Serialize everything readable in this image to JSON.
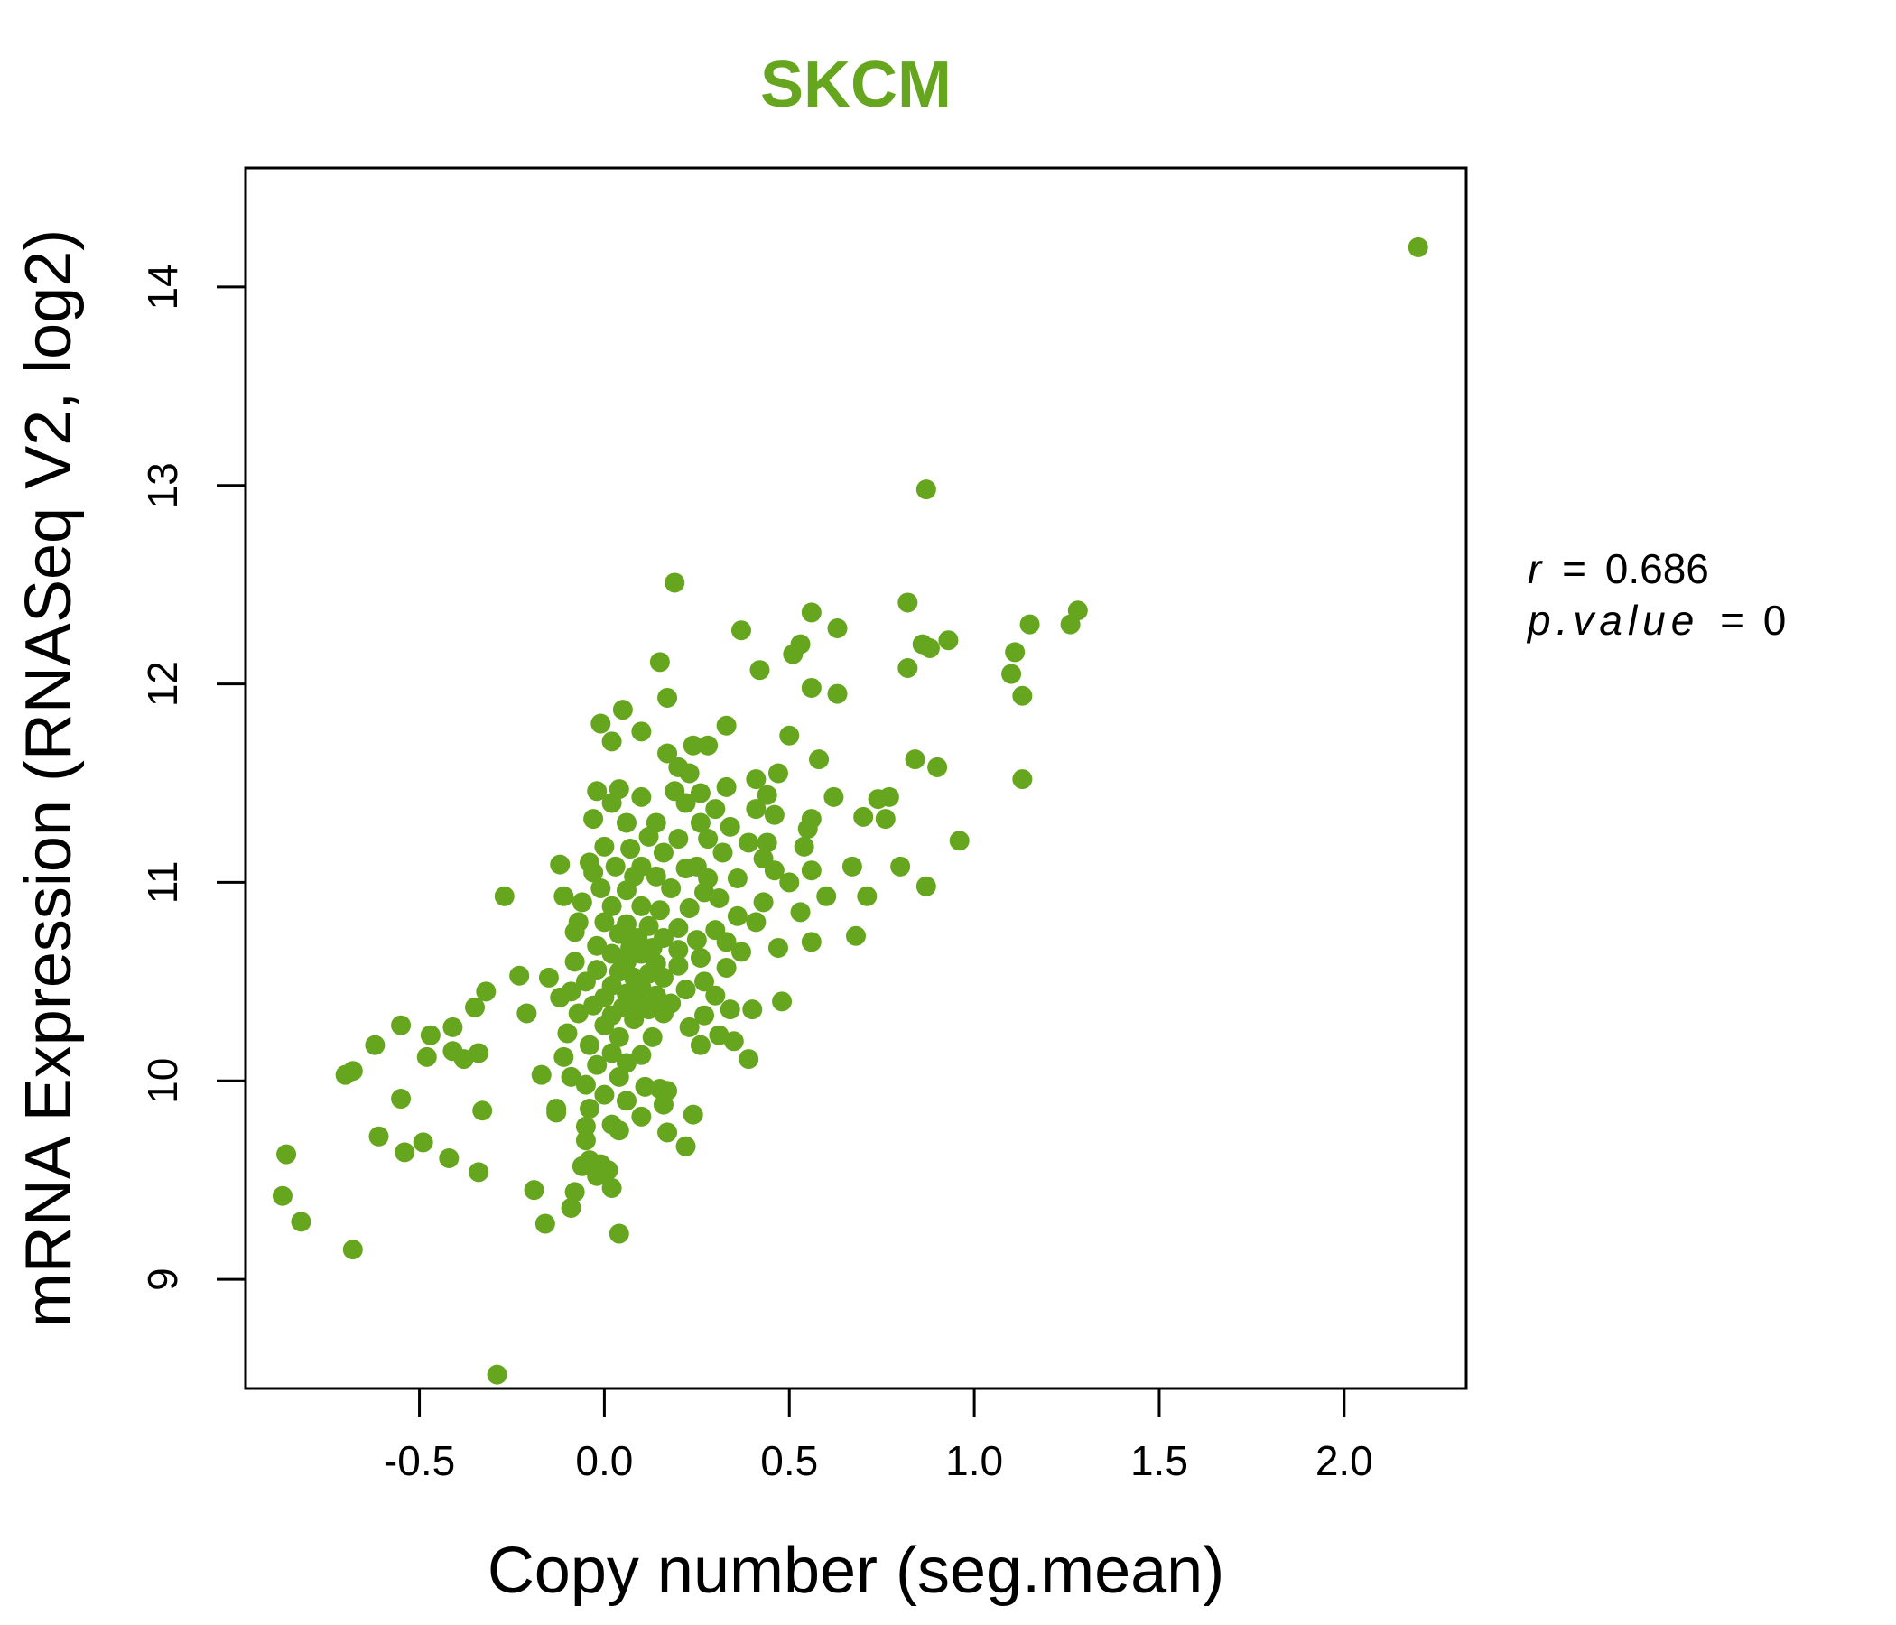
{
  "chart_data": {
    "type": "scatter",
    "title": "SKCM",
    "xlabel": "Copy number (seg.mean)",
    "ylabel": "mRNA Expression (RNASeq V2, log2)",
    "xlim": [
      -0.97,
      2.33
    ],
    "ylim": [
      8.45,
      14.6
    ],
    "xticks": [
      -0.5,
      0.0,
      0.5,
      1.0,
      1.5,
      2.0
    ],
    "xtick_labels": [
      "-0.5",
      "0.0",
      "0.5",
      "1.0",
      "1.5",
      "2.0"
    ],
    "yticks": [
      9,
      10,
      11,
      12,
      13,
      14
    ],
    "ytick_labels": [
      "9",
      "10",
      "11",
      "12",
      "13",
      "14"
    ],
    "grid": false,
    "point_color": "#66a61e",
    "annotations": [
      {
        "label": "r",
        "value": "0.686"
      },
      {
        "label": "p.value",
        "value": "0"
      }
    ],
    "points": [
      [
        2.2,
        14.2
      ],
      [
        0.87,
        12.98
      ],
      [
        0.19,
        12.51
      ],
      [
        0.56,
        12.36
      ],
      [
        0.82,
        12.41
      ],
      [
        1.28,
        12.37
      ],
      [
        1.15,
        12.3
      ],
      [
        1.26,
        12.3
      ],
      [
        0.37,
        12.27
      ],
      [
        0.63,
        12.28
      ],
      [
        0.86,
        12.2
      ],
      [
        0.88,
        12.18
      ],
      [
        0.93,
        12.22
      ],
      [
        0.53,
        12.2
      ],
      [
        0.51,
        12.15
      ],
      [
        0.42,
        12.07
      ],
      [
        0.82,
        12.08
      ],
      [
        1.11,
        12.16
      ],
      [
        1.1,
        12.05
      ],
      [
        0.15,
        12.11
      ],
      [
        0.56,
        11.98
      ],
      [
        0.63,
        11.95
      ],
      [
        1.13,
        11.94
      ],
      [
        0.17,
        11.93
      ],
      [
        0.05,
        11.87
      ],
      [
        -0.01,
        11.8
      ],
      [
        0.1,
        11.76
      ],
      [
        0.33,
        11.79
      ],
      [
        0.5,
        11.74
      ],
      [
        0.24,
        11.69
      ],
      [
        0.28,
        11.69
      ],
      [
        0.02,
        11.71
      ],
      [
        0.17,
        11.65
      ],
      [
        0.58,
        11.62
      ],
      [
        0.84,
        11.62
      ],
      [
        0.9,
        11.58
      ],
      [
        0.2,
        11.58
      ],
      [
        0.23,
        11.55
      ],
      [
        0.47,
        11.55
      ],
      [
        0.41,
        11.52
      ],
      [
        1.13,
        11.52
      ],
      [
        0.33,
        11.48
      ],
      [
        0.04,
        11.47
      ],
      [
        -0.02,
        11.46
      ],
      [
        0.19,
        11.46
      ],
      [
        0.26,
        11.45
      ],
      [
        0.44,
        11.44
      ],
      [
        0.62,
        11.43
      ],
      [
        0.74,
        11.42
      ],
      [
        0.77,
        11.43
      ],
      [
        0.1,
        11.43
      ],
      [
        0.02,
        11.4
      ],
      [
        0.22,
        11.4
      ],
      [
        0.3,
        11.37
      ],
      [
        0.41,
        11.37
      ],
      [
        0.46,
        11.34
      ],
      [
        0.56,
        11.32
      ],
      [
        0.7,
        11.33
      ],
      [
        0.76,
        11.32
      ],
      [
        -0.03,
        11.32
      ],
      [
        0.06,
        11.3
      ],
      [
        0.14,
        11.3
      ],
      [
        0.26,
        11.3
      ],
      [
        0.34,
        11.28
      ],
      [
        0.55,
        11.27
      ],
      [
        0.96,
        11.21
      ],
      [
        0.12,
        11.23
      ],
      [
        0.2,
        11.22
      ],
      [
        0.28,
        11.22
      ],
      [
        0.39,
        11.2
      ],
      [
        0.44,
        11.2
      ],
      [
        0.54,
        11.18
      ],
      [
        0.0,
        11.18
      ],
      [
        0.07,
        11.17
      ],
      [
        0.16,
        11.15
      ],
      [
        0.32,
        11.15
      ],
      [
        0.43,
        11.12
      ],
      [
        -0.12,
        11.09
      ],
      [
        -0.04,
        11.1
      ],
      [
        0.03,
        11.08
      ],
      [
        0.1,
        11.08
      ],
      [
        0.22,
        11.07
      ],
      [
        0.25,
        11.08
      ],
      [
        0.46,
        11.06
      ],
      [
        0.56,
        11.06
      ],
      [
        0.67,
        11.08
      ],
      [
        0.8,
        11.08
      ],
      [
        -0.03,
        11.05
      ],
      [
        0.08,
        11.03
      ],
      [
        0.14,
        11.03
      ],
      [
        0.28,
        11.02
      ],
      [
        0.36,
        11.02
      ],
      [
        0.5,
        11.0
      ],
      [
        0.87,
        10.98
      ],
      [
        -0.01,
        10.97
      ],
      [
        0.06,
        10.96
      ],
      [
        0.18,
        10.97
      ],
      [
        0.27,
        10.95
      ],
      [
        -0.27,
        10.93
      ],
      [
        -0.11,
        10.93
      ],
      [
        0.6,
        10.93
      ],
      [
        0.71,
        10.93
      ],
      [
        0.31,
        10.92
      ],
      [
        0.43,
        10.9
      ],
      [
        -0.06,
        10.9
      ],
      [
        0.02,
        10.88
      ],
      [
        0.1,
        10.88
      ],
      [
        0.15,
        10.86
      ],
      [
        0.23,
        10.87
      ],
      [
        0.53,
        10.85
      ],
      [
        0.36,
        10.83
      ],
      [
        0.41,
        10.8
      ],
      [
        -0.07,
        10.8
      ],
      [
        0.0,
        10.8
      ],
      [
        0.06,
        10.79
      ],
      [
        0.12,
        10.78
      ],
      [
        0.2,
        10.77
      ],
      [
        0.3,
        10.76
      ],
      [
        -0.08,
        10.75
      ],
      [
        0.04,
        10.74
      ],
      [
        0.68,
        10.73
      ],
      [
        0.09,
        10.72
      ],
      [
        0.16,
        10.72
      ],
      [
        0.25,
        10.71
      ],
      [
        0.33,
        10.7
      ],
      [
        0.56,
        10.7
      ],
      [
        -0.02,
        10.68
      ],
      [
        0.07,
        10.67
      ],
      [
        0.13,
        10.67
      ],
      [
        0.2,
        10.66
      ],
      [
        0.47,
        10.67
      ],
      [
        0.02,
        10.64
      ],
      [
        0.1,
        10.64
      ],
      [
        0.26,
        10.62
      ],
      [
        0.37,
        10.65
      ],
      [
        -0.08,
        10.6
      ],
      [
        0.06,
        10.6
      ],
      [
        0.14,
        10.59
      ],
      [
        0.2,
        10.58
      ],
      [
        0.33,
        10.57
      ],
      [
        -0.02,
        10.56
      ],
      [
        0.04,
        10.55
      ],
      [
        0.12,
        10.54
      ],
      [
        -0.23,
        10.53
      ],
      [
        -0.15,
        10.52
      ],
      [
        0.08,
        10.52
      ],
      [
        0.16,
        10.52
      ],
      [
        0.27,
        10.5
      ],
      [
        -0.05,
        10.5
      ],
      [
        0.02,
        10.48
      ],
      [
        0.1,
        10.47
      ],
      [
        0.22,
        10.46
      ],
      [
        -0.32,
        10.45
      ],
      [
        -0.09,
        10.45
      ],
      [
        0.06,
        10.44
      ],
      [
        0.14,
        10.43
      ],
      [
        0.3,
        10.43
      ],
      [
        -0.12,
        10.42
      ],
      [
        0.0,
        10.42
      ],
      [
        0.09,
        10.4
      ],
      [
        0.18,
        10.39
      ],
      [
        0.48,
        10.4
      ],
      [
        -0.35,
        10.37
      ],
      [
        -0.03,
        10.38
      ],
      [
        0.05,
        10.37
      ],
      [
        0.12,
        10.36
      ],
      [
        0.34,
        10.36
      ],
      [
        0.4,
        10.36
      ],
      [
        -0.21,
        10.34
      ],
      [
        -0.07,
        10.34
      ],
      [
        0.02,
        10.33
      ],
      [
        0.16,
        10.34
      ],
      [
        0.27,
        10.33
      ],
      [
        0.08,
        10.31
      ],
      [
        -0.55,
        10.28
      ],
      [
        -0.41,
        10.27
      ],
      [
        0.0,
        10.28
      ],
      [
        0.23,
        10.27
      ],
      [
        -0.47,
        10.23
      ],
      [
        -0.1,
        10.24
      ],
      [
        0.04,
        10.22
      ],
      [
        0.13,
        10.22
      ],
      [
        0.31,
        10.23
      ],
      [
        0.35,
        10.2
      ],
      [
        -0.62,
        10.18
      ],
      [
        0.26,
        10.18
      ],
      [
        -0.04,
        10.18
      ],
      [
        -0.41,
        10.15
      ],
      [
        -0.34,
        10.14
      ],
      [
        0.02,
        10.14
      ],
      [
        0.1,
        10.13
      ],
      [
        -0.48,
        10.12
      ],
      [
        -0.38,
        10.11
      ],
      [
        -0.11,
        10.12
      ],
      [
        0.39,
        10.11
      ],
      [
        0.06,
        10.09
      ],
      [
        -0.02,
        10.08
      ],
      [
        -0.68,
        10.05
      ],
      [
        -0.7,
        10.03
      ],
      [
        -0.17,
        10.03
      ],
      [
        -0.09,
        10.02
      ],
      [
        0.04,
        10.02
      ],
      [
        -0.05,
        9.98
      ],
      [
        0.11,
        9.97
      ],
      [
        0.15,
        9.96
      ],
      [
        0.17,
        9.95
      ],
      [
        -0.55,
        9.91
      ],
      [
        0.0,
        9.93
      ],
      [
        0.06,
        9.9
      ],
      [
        0.16,
        9.88
      ],
      [
        -0.13,
        9.86
      ],
      [
        -0.33,
        9.85
      ],
      [
        -0.13,
        9.84
      ],
      [
        -0.04,
        9.86
      ],
      [
        0.1,
        9.82
      ],
      [
        0.24,
        9.83
      ],
      [
        0.02,
        9.78
      ],
      [
        -0.05,
        9.77
      ],
      [
        0.04,
        9.75
      ],
      [
        0.17,
        9.74
      ],
      [
        -0.61,
        9.72
      ],
      [
        -0.49,
        9.69
      ],
      [
        -0.05,
        9.7
      ],
      [
        0.22,
        9.67
      ],
      [
        -0.86,
        9.63
      ],
      [
        -0.54,
        9.64
      ],
      [
        -0.42,
        9.61
      ],
      [
        -0.04,
        9.6
      ],
      [
        -0.06,
        9.57
      ],
      [
        -0.01,
        9.58
      ],
      [
        0.01,
        9.55
      ],
      [
        -0.34,
        9.54
      ],
      [
        -0.02,
        9.52
      ],
      [
        0.02,
        9.46
      ],
      [
        -0.19,
        9.45
      ],
      [
        -0.08,
        9.44
      ],
      [
        -0.87,
        9.42
      ],
      [
        -0.09,
        9.36
      ],
      [
        -0.82,
        9.29
      ],
      [
        -0.16,
        9.28
      ],
      [
        0.04,
        9.23
      ],
      [
        -0.68,
        9.15
      ],
      [
        -0.29,
        8.52
      ]
    ]
  }
}
